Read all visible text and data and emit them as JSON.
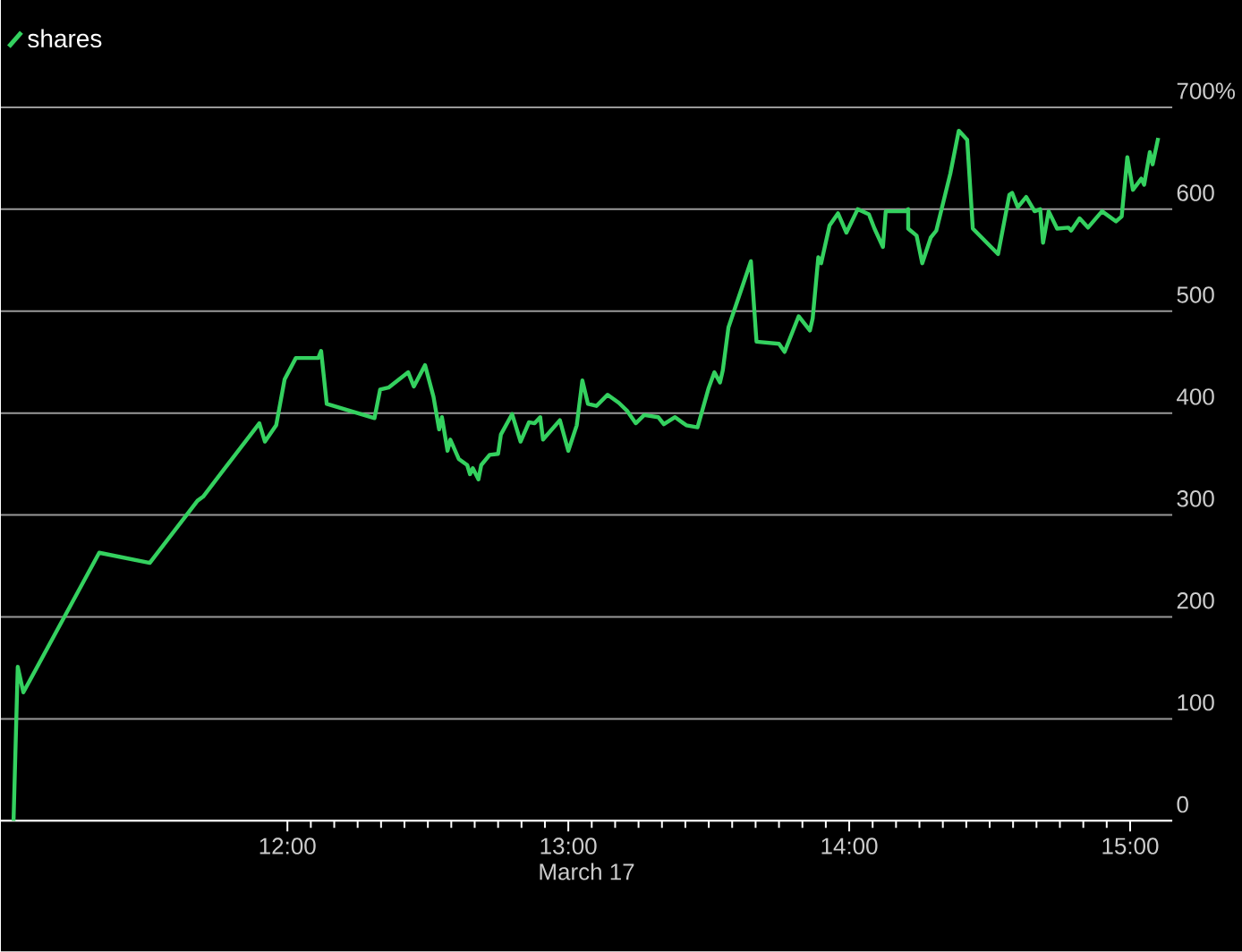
{
  "chart_data": {
    "type": "line",
    "xlabel": "March 17",
    "x": [
      11.025,
      11.04,
      11.06,
      11.33,
      11.51,
      11.68,
      11.7,
      11.9,
      11.92,
      11.96,
      11.99,
      12.03,
      12.11,
      12.12,
      12.14,
      12.31,
      12.33,
      12.36,
      12.43,
      12.45,
      12.49,
      12.52,
      12.54,
      12.55,
      12.57,
      12.58,
      12.61,
      12.64,
      12.65,
      12.66,
      12.68,
      12.69,
      12.72,
      12.75,
      12.76,
      12.8,
      12.83,
      12.86,
      12.88,
      12.9,
      12.91,
      12.97,
      13.0,
      13.03,
      13.05,
      13.07,
      13.1,
      13.14,
      13.18,
      13.21,
      13.24,
      13.27,
      13.32,
      13.34,
      13.38,
      13.42,
      13.46,
      13.5,
      13.52,
      13.54,
      13.55,
      13.57,
      13.65,
      13.67,
      13.75,
      13.77,
      13.82,
      13.86,
      13.87,
      13.89,
      13.9,
      13.93,
      13.96,
      13.99,
      14.03,
      14.07,
      14.09,
      14.12,
      14.13,
      14.2,
      14.21,
      14.21,
      14.24,
      14.26,
      14.29,
      14.31,
      14.36,
      14.39,
      14.42,
      14.44,
      14.53,
      14.57,
      14.58,
      14.6,
      14.63,
      14.66,
      14.68,
      14.69,
      14.71,
      14.74,
      14.78,
      14.79,
      14.82,
      14.85,
      14.9,
      14.95,
      14.97,
      14.99,
      15.01,
      15.04,
      15.05,
      15.07,
      15.08,
      15.1
    ],
    "xlim": [
      10.98,
      15.15
    ],
    "xticks": [
      {
        "value": 12,
        "label": "12:00"
      },
      {
        "value": 13,
        "label": "13:00"
      },
      {
        "value": 14,
        "label": "14:00"
      },
      {
        "value": 15,
        "label": "15:00"
      }
    ],
    "ylim": [
      0,
      700
    ],
    "yticks": [
      0,
      100,
      200,
      300,
      400,
      500,
      600,
      {
        "value": 700,
        "label": "700%"
      }
    ],
    "series": [
      {
        "name": "shares",
        "color": "#34d15f",
        "values": [
          0,
          151,
          126,
          263,
          253,
          314,
          318,
          390,
          372,
          388,
          433,
          454,
          454,
          461,
          409,
          395,
          423,
          425,
          440,
          426,
          447,
          416,
          384,
          396,
          363,
          374,
          355,
          349,
          340,
          346,
          335,
          349,
          359,
          360,
          379,
          399,
          372,
          391,
          390,
          396,
          374,
          393,
          363,
          388,
          432,
          409,
          407,
          418,
          410,
          402,
          390,
          398,
          396,
          389,
          396,
          388,
          386,
          425,
          440,
          430,
          442,
          484,
          549,
          470,
          468,
          460,
          495,
          481,
          493,
          553,
          547,
          584,
          596,
          577,
          600,
          595,
          581,
          563,
          598,
          598,
          600,
          581,
          574,
          547,
          572,
          579,
          635,
          677,
          668,
          581,
          556,
          614,
          616,
          602,
          612,
          598,
          600,
          567,
          598,
          581,
          582,
          579,
          591,
          582,
          598,
          588,
          593,
          651,
          619,
          630,
          624,
          656,
          644,
          670
        ]
      }
    ],
    "grid": "y",
    "legend": "top left",
    "marker": "none",
    "line_style": "solid"
  }
}
